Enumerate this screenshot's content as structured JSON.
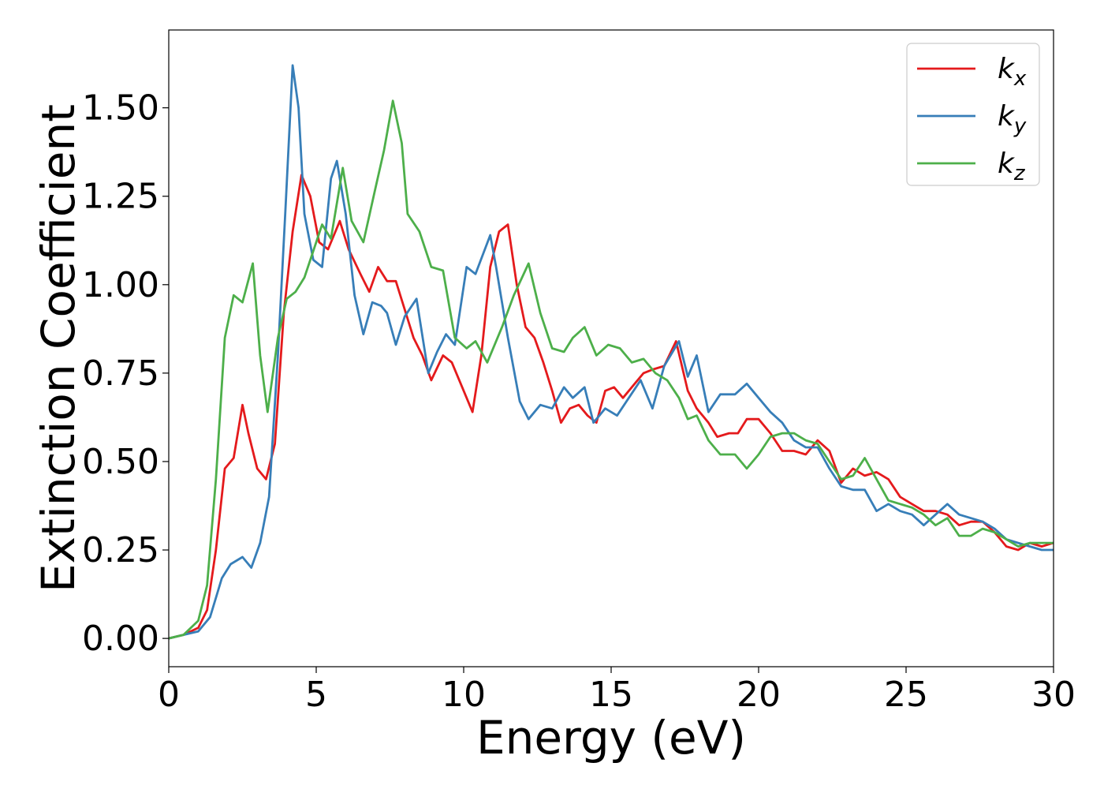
{
  "chart_data": {
    "type": "line",
    "title": "",
    "xlabel": "Energy (eV)",
    "ylabel": "Extinction Coefficient",
    "xlim": [
      0,
      30
    ],
    "ylim": [
      -0.08,
      1.72
    ],
    "xticks": [
      0,
      5,
      10,
      15,
      20,
      25,
      30
    ],
    "xtick_labels": [
      "0",
      "5",
      "10",
      "15",
      "20",
      "25",
      "30"
    ],
    "yticks": [
      0.0,
      0.25,
      0.5,
      0.75,
      1.0,
      1.25,
      1.5
    ],
    "ytick_labels": [
      "0.00",
      "0.25",
      "0.50",
      "0.75",
      "1.00",
      "1.25",
      "1.50"
    ],
    "grid": false,
    "legend_position": "top-right",
    "series": [
      {
        "name": "k_x",
        "label_main": "k",
        "label_sub": "x",
        "color": "#e41a1c",
        "points": [
          [
            0,
            0
          ],
          [
            0.5,
            0.01
          ],
          [
            1.0,
            0.03
          ],
          [
            1.3,
            0.08
          ],
          [
            1.6,
            0.25
          ],
          [
            1.9,
            0.48
          ],
          [
            2.2,
            0.51
          ],
          [
            2.5,
            0.66
          ],
          [
            2.7,
            0.58
          ],
          [
            3.0,
            0.48
          ],
          [
            3.3,
            0.45
          ],
          [
            3.6,
            0.55
          ],
          [
            3.9,
            0.92
          ],
          [
            4.2,
            1.15
          ],
          [
            4.5,
            1.31
          ],
          [
            4.8,
            1.25
          ],
          [
            5.1,
            1.12
          ],
          [
            5.4,
            1.1
          ],
          [
            5.8,
            1.18
          ],
          [
            6.1,
            1.1
          ],
          [
            6.5,
            1.03
          ],
          [
            6.8,
            0.98
          ],
          [
            7.1,
            1.05
          ],
          [
            7.4,
            1.01
          ],
          [
            7.7,
            1.01
          ],
          [
            8.0,
            0.93
          ],
          [
            8.3,
            0.85
          ],
          [
            8.6,
            0.8
          ],
          [
            8.9,
            0.73
          ],
          [
            9.3,
            0.8
          ],
          [
            9.6,
            0.78
          ],
          [
            10.0,
            0.7
          ],
          [
            10.3,
            0.64
          ],
          [
            10.6,
            0.8
          ],
          [
            10.9,
            1.05
          ],
          [
            11.2,
            1.15
          ],
          [
            11.5,
            1.17
          ],
          [
            11.8,
            1.0
          ],
          [
            12.1,
            0.88
          ],
          [
            12.4,
            0.85
          ],
          [
            12.7,
            0.78
          ],
          [
            13.0,
            0.7
          ],
          [
            13.3,
            0.61
          ],
          [
            13.6,
            0.65
          ],
          [
            13.9,
            0.66
          ],
          [
            14.2,
            0.63
          ],
          [
            14.5,
            0.61
          ],
          [
            14.8,
            0.7
          ],
          [
            15.1,
            0.71
          ],
          [
            15.4,
            0.68
          ],
          [
            15.8,
            0.72
          ],
          [
            16.1,
            0.75
          ],
          [
            16.4,
            0.76
          ],
          [
            16.8,
            0.77
          ],
          [
            17.2,
            0.84
          ],
          [
            17.6,
            0.7
          ],
          [
            17.9,
            0.65
          ],
          [
            18.3,
            0.61
          ],
          [
            18.6,
            0.57
          ],
          [
            19.0,
            0.58
          ],
          [
            19.3,
            0.58
          ],
          [
            19.6,
            0.62
          ],
          [
            20.0,
            0.62
          ],
          [
            20.4,
            0.58
          ],
          [
            20.8,
            0.53
          ],
          [
            21.2,
            0.53
          ],
          [
            21.6,
            0.52
          ],
          [
            22.0,
            0.56
          ],
          [
            22.4,
            0.53
          ],
          [
            22.8,
            0.44
          ],
          [
            23.2,
            0.48
          ],
          [
            23.6,
            0.46
          ],
          [
            24.0,
            0.47
          ],
          [
            24.4,
            0.45
          ],
          [
            24.8,
            0.4
          ],
          [
            25.2,
            0.38
          ],
          [
            25.6,
            0.36
          ],
          [
            26.0,
            0.36
          ],
          [
            26.4,
            0.35
          ],
          [
            26.8,
            0.32
          ],
          [
            27.2,
            0.33
          ],
          [
            27.6,
            0.33
          ],
          [
            28.0,
            0.3
          ],
          [
            28.4,
            0.26
          ],
          [
            28.8,
            0.25
          ],
          [
            29.2,
            0.27
          ],
          [
            29.6,
            0.26
          ],
          [
            30.0,
            0.27
          ]
        ]
      },
      {
        "name": "k_y",
        "label_main": "k",
        "label_sub": "y",
        "color": "#377eb8",
        "points": [
          [
            0,
            0
          ],
          [
            0.5,
            0.01
          ],
          [
            1.0,
            0.02
          ],
          [
            1.4,
            0.06
          ],
          [
            1.8,
            0.17
          ],
          [
            2.1,
            0.21
          ],
          [
            2.5,
            0.23
          ],
          [
            2.8,
            0.2
          ],
          [
            3.1,
            0.27
          ],
          [
            3.4,
            0.4
          ],
          [
            3.7,
            0.8
          ],
          [
            3.95,
            1.2
          ],
          [
            4.2,
            1.62
          ],
          [
            4.4,
            1.5
          ],
          [
            4.6,
            1.2
          ],
          [
            4.9,
            1.07
          ],
          [
            5.2,
            1.05
          ],
          [
            5.5,
            1.3
          ],
          [
            5.7,
            1.35
          ],
          [
            6.0,
            1.2
          ],
          [
            6.3,
            0.97
          ],
          [
            6.6,
            0.86
          ],
          [
            6.9,
            0.95
          ],
          [
            7.2,
            0.94
          ],
          [
            7.4,
            0.92
          ],
          [
            7.7,
            0.83
          ],
          [
            8.0,
            0.91
          ],
          [
            8.4,
            0.96
          ],
          [
            8.8,
            0.75
          ],
          [
            9.1,
            0.81
          ],
          [
            9.4,
            0.86
          ],
          [
            9.7,
            0.83
          ],
          [
            10.1,
            1.05
          ],
          [
            10.4,
            1.03
          ],
          [
            10.9,
            1.14
          ],
          [
            11.1,
            1.05
          ],
          [
            11.5,
            0.85
          ],
          [
            11.9,
            0.67
          ],
          [
            12.2,
            0.62
          ],
          [
            12.6,
            0.66
          ],
          [
            13.0,
            0.65
          ],
          [
            13.4,
            0.71
          ],
          [
            13.7,
            0.68
          ],
          [
            14.1,
            0.71
          ],
          [
            14.4,
            0.61
          ],
          [
            14.8,
            0.65
          ],
          [
            15.2,
            0.63
          ],
          [
            15.6,
            0.68
          ],
          [
            16.0,
            0.73
          ],
          [
            16.4,
            0.65
          ],
          [
            16.8,
            0.77
          ],
          [
            17.3,
            0.84
          ],
          [
            17.6,
            0.74
          ],
          [
            17.9,
            0.8
          ],
          [
            18.3,
            0.64
          ],
          [
            18.7,
            0.69
          ],
          [
            19.2,
            0.69
          ],
          [
            19.6,
            0.72
          ],
          [
            20.0,
            0.68
          ],
          [
            20.4,
            0.64
          ],
          [
            20.8,
            0.61
          ],
          [
            21.2,
            0.56
          ],
          [
            21.6,
            0.54
          ],
          [
            22.0,
            0.54
          ],
          [
            22.4,
            0.48
          ],
          [
            22.8,
            0.43
          ],
          [
            23.2,
            0.42
          ],
          [
            23.6,
            0.42
          ],
          [
            24.0,
            0.36
          ],
          [
            24.4,
            0.38
          ],
          [
            24.8,
            0.36
          ],
          [
            25.2,
            0.35
          ],
          [
            25.6,
            0.32
          ],
          [
            26.0,
            0.35
          ],
          [
            26.4,
            0.38
          ],
          [
            26.8,
            0.35
          ],
          [
            27.2,
            0.34
          ],
          [
            27.6,
            0.33
          ],
          [
            28.0,
            0.31
          ],
          [
            28.4,
            0.28
          ],
          [
            28.8,
            0.27
          ],
          [
            29.2,
            0.26
          ],
          [
            29.6,
            0.25
          ],
          [
            30.0,
            0.25
          ]
        ]
      },
      {
        "name": "k_z",
        "label_main": "k",
        "label_sub": "z",
        "color": "#4daf4a",
        "points": [
          [
            0,
            0
          ],
          [
            0.5,
            0.01
          ],
          [
            1.0,
            0.05
          ],
          [
            1.3,
            0.15
          ],
          [
            1.6,
            0.45
          ],
          [
            1.9,
            0.85
          ],
          [
            2.2,
            0.97
          ],
          [
            2.5,
            0.95
          ],
          [
            2.85,
            1.06
          ],
          [
            3.1,
            0.8
          ],
          [
            3.35,
            0.64
          ],
          [
            3.7,
            0.85
          ],
          [
            4.0,
            0.96
          ],
          [
            4.3,
            0.98
          ],
          [
            4.6,
            1.02
          ],
          [
            5.0,
            1.12
          ],
          [
            5.2,
            1.17
          ],
          [
            5.5,
            1.13
          ],
          [
            5.9,
            1.33
          ],
          [
            6.2,
            1.18
          ],
          [
            6.6,
            1.12
          ],
          [
            7.0,
            1.27
          ],
          [
            7.3,
            1.38
          ],
          [
            7.6,
            1.52
          ],
          [
            7.9,
            1.4
          ],
          [
            8.1,
            1.2
          ],
          [
            8.5,
            1.15
          ],
          [
            8.9,
            1.05
          ],
          [
            9.3,
            1.04
          ],
          [
            9.7,
            0.85
          ],
          [
            10.1,
            0.82
          ],
          [
            10.4,
            0.84
          ],
          [
            10.8,
            0.78
          ],
          [
            11.3,
            0.88
          ],
          [
            11.7,
            0.97
          ],
          [
            12.2,
            1.06
          ],
          [
            12.6,
            0.92
          ],
          [
            13.0,
            0.82
          ],
          [
            13.4,
            0.81
          ],
          [
            13.7,
            0.85
          ],
          [
            14.1,
            0.88
          ],
          [
            14.5,
            0.8
          ],
          [
            14.9,
            0.83
          ],
          [
            15.3,
            0.82
          ],
          [
            15.7,
            0.78
          ],
          [
            16.1,
            0.79
          ],
          [
            16.5,
            0.75
          ],
          [
            16.9,
            0.73
          ],
          [
            17.3,
            0.68
          ],
          [
            17.6,
            0.62
          ],
          [
            17.9,
            0.63
          ],
          [
            18.3,
            0.56
          ],
          [
            18.7,
            0.52
          ],
          [
            19.2,
            0.52
          ],
          [
            19.6,
            0.48
          ],
          [
            20.0,
            0.52
          ],
          [
            20.4,
            0.57
          ],
          [
            20.8,
            0.58
          ],
          [
            21.2,
            0.58
          ],
          [
            21.6,
            0.56
          ],
          [
            22.0,
            0.55
          ],
          [
            22.4,
            0.5
          ],
          [
            22.8,
            0.45
          ],
          [
            23.2,
            0.46
          ],
          [
            23.6,
            0.51
          ],
          [
            24.0,
            0.45
          ],
          [
            24.4,
            0.39
          ],
          [
            24.8,
            0.38
          ],
          [
            25.2,
            0.37
          ],
          [
            25.6,
            0.35
          ],
          [
            26.0,
            0.32
          ],
          [
            26.4,
            0.34
          ],
          [
            26.8,
            0.29
          ],
          [
            27.2,
            0.29
          ],
          [
            27.6,
            0.31
          ],
          [
            28.0,
            0.3
          ],
          [
            28.4,
            0.28
          ],
          [
            28.8,
            0.26
          ],
          [
            29.2,
            0.27
          ],
          [
            29.6,
            0.27
          ],
          [
            30.0,
            0.27
          ]
        ]
      }
    ]
  }
}
